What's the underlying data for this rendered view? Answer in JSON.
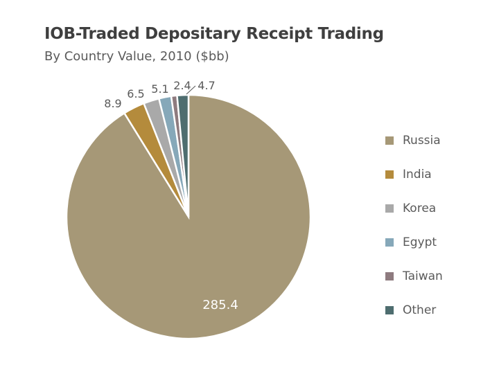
{
  "chart_data": {
    "type": "pie",
    "title": "IOB-Traded Depositary Receipt Trading",
    "subtitle": "By Country Value, 2010 ($bb)",
    "categories": [
      "Russia",
      "India",
      "Korea",
      "Egypt",
      "Taiwan",
      "Other"
    ],
    "values": [
      285.4,
      8.9,
      6.5,
      5.1,
      2.4,
      4.7
    ],
    "value_labels": [
      "285.4",
      "8.9",
      "6.5",
      "5.1",
      "2.4",
      "4.7"
    ],
    "colors": [
      "#a69877",
      "#b48b3c",
      "#a9a9a9",
      "#86a8b9",
      "#8e7b7f",
      "#4e6d6f"
    ],
    "legend_position": "right",
    "start": "top, clockwise (Russia drawn first going clockwise from 12 o'clock)"
  }
}
